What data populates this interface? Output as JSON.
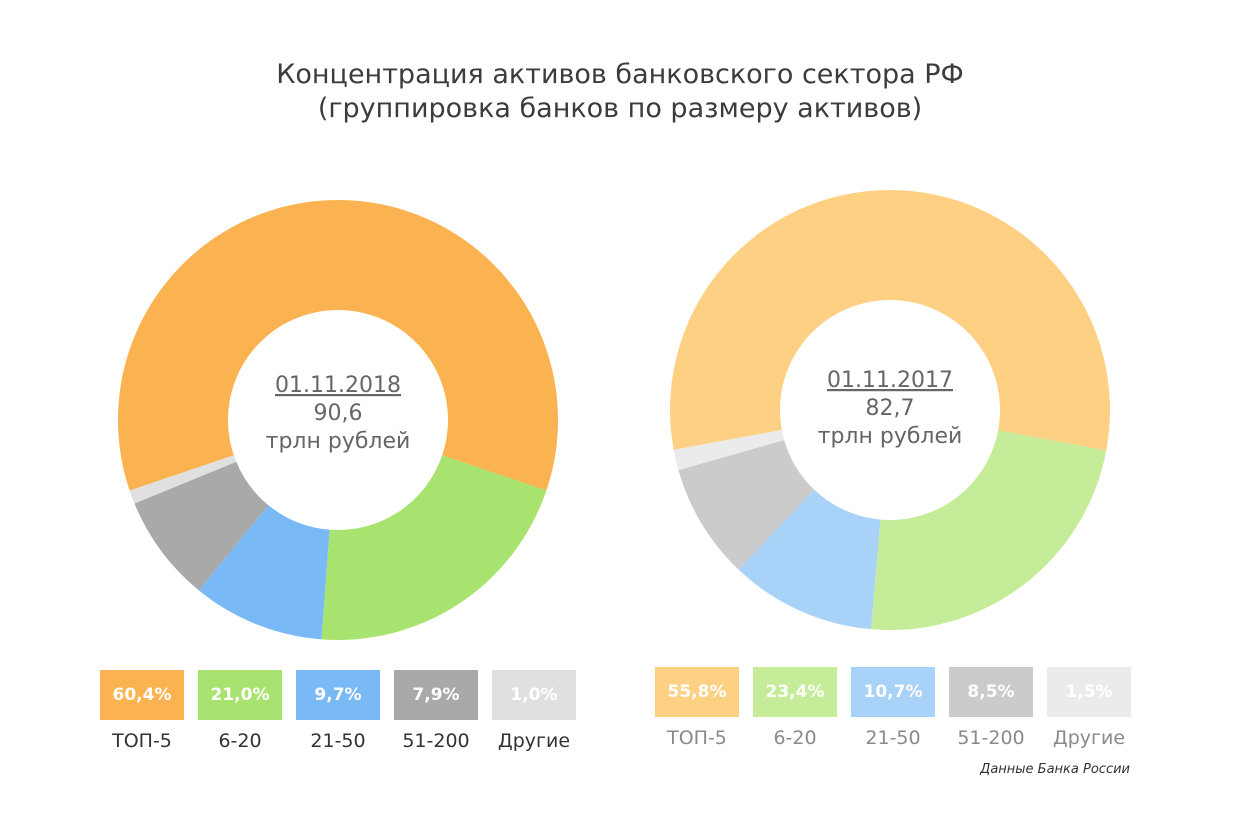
{
  "title": {
    "line1": "Концентрация активов банковского сектора РФ",
    "line2": "(группировка банков по размеру активов)"
  },
  "colors": {
    "2018": [
      "#fbb351",
      "#a9e36f",
      "#78b9f6",
      "#a9a9a9",
      "#e0e0e0"
    ],
    "2017": [
      "#fdd083",
      "#c5ec98",
      "#a8d2f8",
      "#cbcbcb",
      "#ebebeb"
    ]
  },
  "chart_data": [
    {
      "type": "pie",
      "center": {
        "date": "01.11.2018",
        "value": "90,6",
        "unit": "трлн рублей"
      },
      "categories": [
        "ТОП-5",
        "6-20",
        "21-50",
        "51-200",
        "Другие"
      ],
      "values": [
        60.4,
        21.0,
        9.7,
        7.9,
        1.0
      ],
      "value_labels": [
        "60,4%",
        "21,0%",
        "9,7%",
        "7,9%",
        "1,0%"
      ]
    },
    {
      "type": "pie",
      "center": {
        "date": "01.11.2017",
        "value": "82,7",
        "unit": "трлн рублей"
      },
      "categories": [
        "ТОП-5",
        "6-20",
        "21-50",
        "51-200",
        "Другие"
      ],
      "values": [
        55.8,
        23.4,
        10.7,
        8.5,
        1.5
      ],
      "value_labels": [
        "55,8%",
        "23,4%",
        "10,7%",
        "8,5%",
        "1,5%"
      ]
    }
  ],
  "source": "Данные Банка России"
}
